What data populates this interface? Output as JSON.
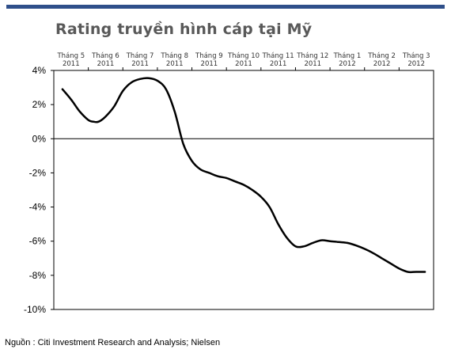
{
  "header": {
    "accent_color": "#2f4f8a",
    "title": "Rating truyền hình cáp tại Mỹ"
  },
  "source": "Nguồn : Citi Investment Research and Analysis; Nielsen",
  "chart_data": {
    "type": "line",
    "title": "Rating truyền hình cáp tại Mỹ",
    "categories": [
      {
        "month": "Tháng 5",
        "year": "2011"
      },
      {
        "month": "Tháng 6",
        "year": "2011"
      },
      {
        "month": "Tháng 7",
        "year": "2011"
      },
      {
        "month": "Tháng 8",
        "year": "2011"
      },
      {
        "month": "Tháng 9",
        "year": "2011"
      },
      {
        "month": "Tháng 10",
        "year": "2011"
      },
      {
        "month": "Tháng 11",
        "year": "2011"
      },
      {
        "month": "Tháng 12",
        "year": "2011"
      },
      {
        "month": "Tháng 1",
        "year": "2012"
      },
      {
        "month": "Tháng 2",
        "year": "2012"
      },
      {
        "month": "Tháng 3",
        "year": "2012"
      }
    ],
    "y_ticks": [
      "4%",
      "2%",
      "0%",
      "-2%",
      "-4%",
      "-6%",
      "-8%",
      "-10%"
    ],
    "ylim": [
      -10,
      4
    ],
    "xlim": [
      0,
      11.0
    ],
    "x_axis_position": "top",
    "line_color": "#000000",
    "series": [
      {
        "x": [
          0.25,
          0.5,
          0.75,
          1.0,
          1.15,
          1.3,
          1.5,
          1.75,
          2.0,
          2.25,
          2.5,
          2.75,
          3.0,
          3.25,
          3.5,
          3.75,
          4.0,
          4.25,
          4.5,
          4.75,
          5.0,
          5.25,
          5.5,
          5.75,
          6.0,
          6.25,
          6.5,
          6.75,
          7.0,
          7.25,
          7.5,
          7.75,
          8.0,
          8.25,
          8.5,
          8.75,
          9.0,
          9.25,
          9.5,
          9.75,
          10.0,
          10.25,
          10.5,
          10.75
        ],
        "values": [
          2.9,
          2.3,
          1.6,
          1.1,
          1.0,
          1.0,
          1.3,
          1.9,
          2.8,
          3.3,
          3.5,
          3.55,
          3.4,
          2.9,
          1.6,
          -0.3,
          -1.3,
          -1.8,
          -2.0,
          -2.2,
          -2.3,
          -2.5,
          -2.7,
          -3.0,
          -3.4,
          -4.0,
          -5.0,
          -5.8,
          -6.3,
          -6.3,
          -6.1,
          -5.95,
          -6.0,
          -6.05,
          -6.1,
          -6.25,
          -6.45,
          -6.7,
          -7.0,
          -7.3,
          -7.6,
          -7.8,
          -7.8,
          -7.8
        ]
      }
    ]
  }
}
